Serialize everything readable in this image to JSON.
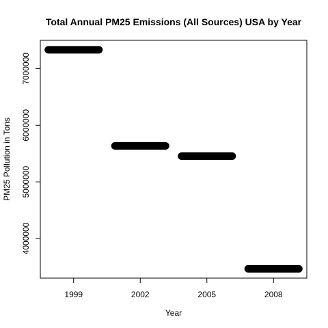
{
  "chart_data": {
    "type": "bar",
    "title": "Total Annual PM25 Emissions (All Sources) USA by Year",
    "xlabel": "Year",
    "ylabel": "PM25 Pollution in Tons",
    "categories": [
      "1999",
      "2002",
      "2005",
      "2008"
    ],
    "values": [
      7332967,
      5635780,
      5454703,
      3464206
    ],
    "yticks": [
      "4000000",
      "5000000",
      "6000000",
      "7000000"
    ],
    "ytick_values": [
      4000000,
      5000000,
      6000000,
      7000000
    ],
    "ylim": [
      3300000,
      7500000
    ],
    "bar_color": "#000000",
    "grid": false,
    "legend": "none"
  }
}
